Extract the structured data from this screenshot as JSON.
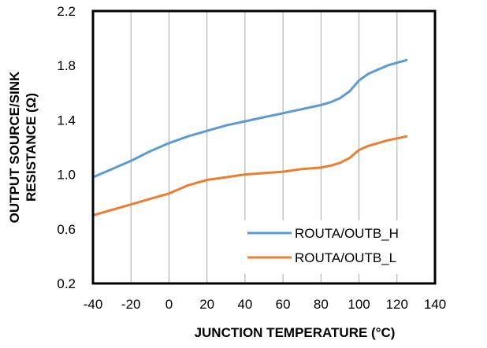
{
  "chart_data": {
    "type": "line",
    "title": "",
    "xlabel": "JUNCTION TEMPERATURE (°C)",
    "ylabel_line1": "OUTPUT SOURCE/SINK",
    "ylabel_line2": "RESISTANCE (Ω)",
    "xlim": [
      -40,
      140
    ],
    "ylim": [
      0.2,
      2.2
    ],
    "xticks": [
      -40,
      -20,
      0,
      20,
      40,
      60,
      80,
      100,
      120,
      140
    ],
    "yticks": [
      0.2,
      0.6,
      1.0,
      1.4,
      1.8,
      2.2
    ],
    "xtick_labels": [
      "-40",
      "-20",
      "0",
      "20",
      "40",
      "60",
      "80",
      "100",
      "120",
      "140"
    ],
    "ytick_labels": [
      "0.2",
      "0.6",
      "1.0",
      "1.4",
      "1.8",
      "2.2"
    ],
    "grid": "vertical",
    "legend_position": "bottom-right",
    "series": [
      {
        "name": "ROUTA/OUTB_H",
        "color": "#5B9BD5",
        "x": [
          -40,
          -30,
          -20,
          -10,
          0,
          10,
          20,
          30,
          40,
          50,
          60,
          70,
          80,
          85,
          90,
          95,
          100,
          105,
          110,
          115,
          120,
          125
        ],
        "y": [
          0.98,
          1.04,
          1.1,
          1.17,
          1.23,
          1.28,
          1.32,
          1.36,
          1.39,
          1.42,
          1.45,
          1.48,
          1.51,
          1.53,
          1.56,
          1.61,
          1.69,
          1.74,
          1.77,
          1.8,
          1.82,
          1.84
        ]
      },
      {
        "name": "ROUTA/OUTB_L",
        "color": "#ED7D31",
        "x": [
          -40,
          -30,
          -20,
          -10,
          0,
          10,
          20,
          30,
          40,
          50,
          60,
          70,
          80,
          85,
          90,
          95,
          100,
          105,
          110,
          115,
          120,
          125
        ],
        "y": [
          0.7,
          0.74,
          0.78,
          0.82,
          0.86,
          0.92,
          0.96,
          0.98,
          1.0,
          1.01,
          1.02,
          1.04,
          1.05,
          1.065,
          1.085,
          1.12,
          1.18,
          1.21,
          1.23,
          1.25,
          1.265,
          1.28
        ]
      }
    ]
  }
}
